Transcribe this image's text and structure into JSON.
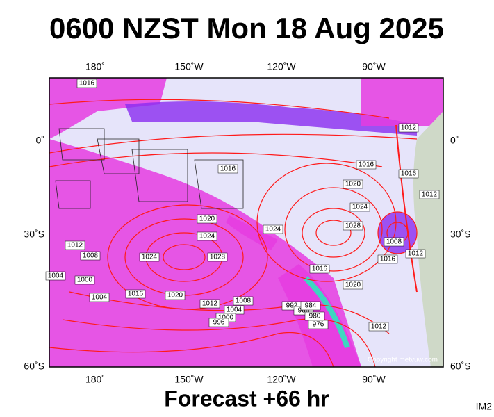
{
  "title": "0600 NZST Mon 18 Aug 2025",
  "forecast": "Forecast +66 hr",
  "image_id": "IM2",
  "copyright": "Copyright metvuw.com",
  "lon_labels": [
    "180˚",
    "150˚W",
    "120˚W",
    "90˚W"
  ],
  "lat_labels": [
    "0˚",
    "30˚S",
    "60˚S"
  ],
  "isobar_labels": [
    1016,
    1012,
    1016,
    1016,
    1020,
    1016,
    1012,
    1024,
    1020,
    1028,
    1024,
    1024,
    1028,
    1012,
    1008,
    1024,
    1008,
    1016,
    1012,
    1004,
    1000,
    1016,
    1020,
    1016,
    1004,
    1020,
    1012,
    1008,
    1004,
    1000,
    996,
    992,
    988,
    984,
    980,
    976,
    1012
  ]
}
